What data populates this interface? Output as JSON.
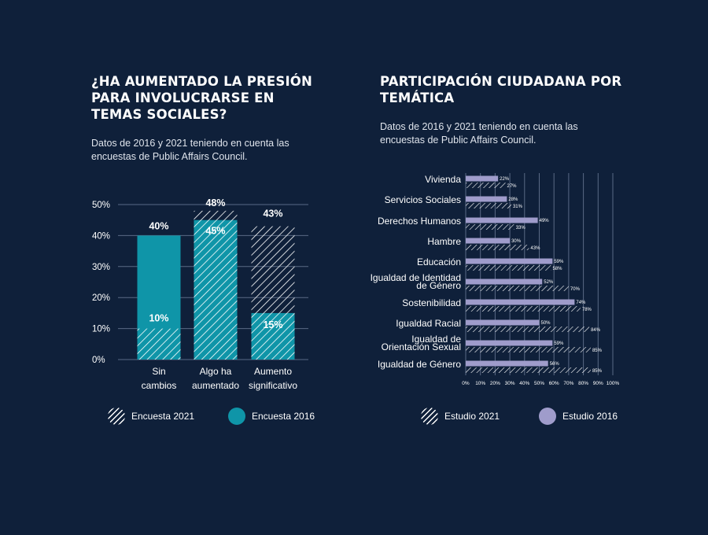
{
  "chart_data": [
    {
      "type": "bar",
      "title": "¿HA AUMENTADO LA PRESIÓN PARA INVOLUCRARSE EN TEMAS SOCIALES?",
      "subtitle": "Datos de 2016 y 2021 teniendo en cuenta las encuestas de Public Affairs Council.",
      "categories": [
        [
          "Sin",
          "cambios"
        ],
        [
          "Algo ha",
          "aumentado"
        ],
        [
          "Aumento",
          "significativo"
        ]
      ],
      "series": [
        {
          "name": "Encuesta 2021",
          "values": [
            10,
            48,
            43
          ],
          "labels": [
            "10%",
            "48%",
            "43%"
          ],
          "style": "hatched"
        },
        {
          "name": "Encuesta 2016",
          "values": [
            40,
            45,
            15
          ],
          "labels": [
            "40%",
            "45%",
            "15%"
          ],
          "style": "solid"
        }
      ],
      "ylim": [
        0,
        50
      ],
      "yticks": [
        0,
        10,
        20,
        30,
        40,
        50
      ],
      "ytick_labels": [
        "0%",
        "10%",
        "20%",
        "30%",
        "40%",
        "50%"
      ],
      "grid": true,
      "legend_position": "bottom"
    },
    {
      "type": "bar",
      "orientation": "horizontal",
      "title": "PARTICIPACIÓN CIUDADANA POR TEMÁTICA",
      "subtitle": "Datos de 2016 y 2021 teniendo en cuenta las encuestas de Public Affairs Council.",
      "categories": [
        [
          "Vivienda"
        ],
        [
          "Servicios Sociales"
        ],
        [
          "Derechos Humanos"
        ],
        [
          "Hambre"
        ],
        [
          "Educación"
        ],
        [
          "Igualdad de Identidad",
          "de Género"
        ],
        [
          "Sostenibilidad"
        ],
        [
          "Igualdad Racial"
        ],
        [
          "Igualdad de",
          "Orientación Sexual"
        ],
        [
          "Igualdad de Género"
        ]
      ],
      "series": [
        {
          "name": "Estudio 2016",
          "values": [
            22,
            28,
            49,
            30,
            59,
            52,
            74,
            50,
            59,
            56
          ],
          "labels": [
            "22%",
            "28%",
            "49%",
            "30%",
            "59%",
            "52%",
            "74%",
            "50%",
            "59%",
            "56%"
          ],
          "style": "solid"
        },
        {
          "name": "Estudio 2021",
          "values": [
            27,
            31,
            33,
            43,
            58,
            70,
            78,
            84,
            85,
            85
          ],
          "labels": [
            "27%",
            "31%",
            "33%",
            "43%",
            "58%",
            "70%",
            "78%",
            "84%",
            "85%",
            "85%"
          ],
          "style": "hatched"
        }
      ],
      "xlim": [
        0,
        100
      ],
      "xticks": [
        0,
        10,
        20,
        30,
        40,
        50,
        60,
        70,
        80,
        90,
        100
      ],
      "xtick_labels": [
        "0%",
        "10%",
        "20%",
        "30%",
        "40%",
        "50%",
        "60%",
        "70%",
        "80%",
        "90%",
        "100%"
      ],
      "grid": true,
      "legend_position": "bottom"
    }
  ],
  "colors": {
    "background": "#0f203a",
    "teal": "#0f95a8",
    "purple": "#9f9ccb",
    "grid": "#5a6a85",
    "text": "#ffffff"
  },
  "legend_left": {
    "hatched": "Encuesta 2021",
    "solid": "Encuesta 2016"
  },
  "legend_right": {
    "hatched": "Estudio 2021",
    "solid": "Estudio 2016"
  }
}
